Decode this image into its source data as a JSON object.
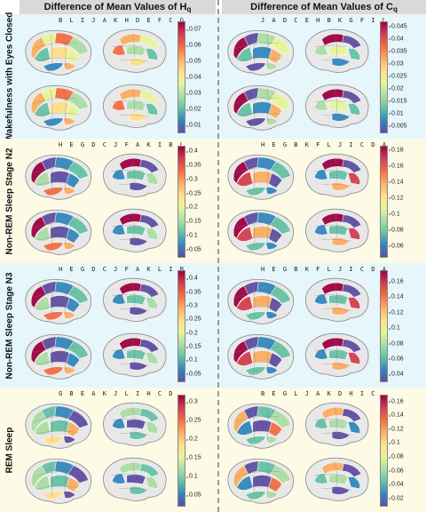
{
  "headers": {
    "left": {
      "text": "Difference of Mean Values of H",
      "sub": "q"
    },
    "right": {
      "text": "Difference of Mean Values of C",
      "sub": "q"
    }
  },
  "rows": [
    {
      "label": "Wakefulness with Eyes Closed",
      "bg": "#e6f6fb",
      "left": {
        "sequence": "B L I J A K H D E F C G",
        "ticks": [
          "0.07",
          "0.06",
          "0.05",
          "0.04",
          "0.03",
          "0.02",
          "0.01"
        ],
        "range": [
          0.005,
          0.075
        ],
        "pattern": "wake-h"
      },
      "right": {
        "sequence": "J A D C E H B K G F I L",
        "ticks": [
          "0.045",
          "0.04",
          "0.035",
          "0.03",
          "0.025",
          "0.02",
          "0.015",
          "0.01",
          "0.005"
        ],
        "range": [
          0.002,
          0.047
        ],
        "pattern": "wake-c"
      }
    },
    {
      "label": "Non-REM Sleep Stage N2",
      "bg": "#fdfbe6",
      "left": {
        "sequence": "H E G D C J F A K I B L",
        "ticks": [
          "0.4",
          "0.35",
          "0.3",
          "0.25",
          "0.2",
          "0.15",
          "0.1",
          "0.05"
        ],
        "range": [
          0.02,
          0.42
        ],
        "pattern": "n2-h"
      },
      "right": {
        "sequence": "H E G B K F L J I C D A",
        "ticks": [
          "0.18",
          "0.16",
          "0.14",
          "0.12",
          "0.1",
          "0.08",
          "0.06"
        ],
        "range": [
          0.045,
          0.185
        ],
        "pattern": "n2-c"
      }
    },
    {
      "label": "Non-REM Sleep Stage N3",
      "bg": "#e6f6fb",
      "left": {
        "sequence": "H E G D C J F A K L I B",
        "ticks": [
          "0.4",
          "0.35",
          "0.3",
          "0.25",
          "0.2",
          "0.15",
          "0.1",
          "0.05"
        ],
        "range": [
          0.02,
          0.43
        ],
        "pattern": "n3-h"
      },
      "right": {
        "sequence": "H E G B K F L J I C D A",
        "ticks": [
          "0.16",
          "0.14",
          "0.12",
          "0.1",
          "0.08",
          "0.06",
          "0.04"
        ],
        "range": [
          0.03,
          0.175
        ],
        "pattern": "n3-c"
      }
    },
    {
      "label": "REM Sleep",
      "bg": "#fdfbe6",
      "left": {
        "sequence": "G B E A K J L I H C D",
        "ticks": [
          "0.3",
          "0.25",
          "0.2",
          "0.15",
          "0.1",
          "0.05"
        ],
        "range": [
          0.02,
          0.32
        ],
        "pattern": "rem-h"
      },
      "right": {
        "sequence": "B E G L J A K D H I C",
        "ticks": [
          "0.16",
          "0.14",
          "0.12",
          "0.1",
          "0.08",
          "0.06",
          "0.04",
          "0.02"
        ],
        "range": [
          0.008,
          0.17
        ],
        "pattern": "rem-c"
      }
    }
  ],
  "colorscale": [
    "#9e0142",
    "#d53e4f",
    "#f46d43",
    "#fdae61",
    "#fee08b",
    "#e6f598",
    "#abdda4",
    "#66c2a5",
    "#3288bd",
    "#5e4fa2"
  ]
}
